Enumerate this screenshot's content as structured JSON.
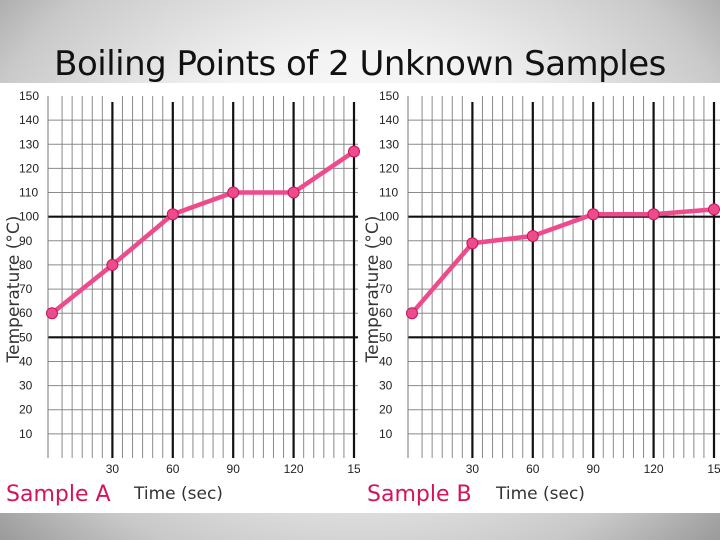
{
  "slide": {
    "title": "Boiling Points of 2 Unknown Samples"
  },
  "colors": {
    "series": "#ef4a8c",
    "major_grid": "#111111",
    "minor_grid": "#8a8a8a",
    "caption": "#d4145a"
  },
  "chart_data": [
    {
      "type": "line",
      "caption": "Sample A",
      "xlabel": "Time (sec)",
      "ylabel": "Temperature (°C)",
      "x_ticks": [
        "30",
        "60",
        "90",
        "120",
        "15"
      ],
      "y_ticks": [
        "150",
        "140",
        "130",
        "120",
        "110",
        "100",
        "90",
        "80",
        "70",
        "60",
        "50",
        "40",
        "30",
        "20",
        "10"
      ],
      "xlim": [
        0,
        150
      ],
      "ylim": [
        0,
        150
      ],
      "grid": true,
      "series": [
        {
          "x": [
            0,
            30,
            60,
            90,
            120,
            150
          ],
          "y": [
            60,
            80,
            101,
            110,
            110,
            127
          ]
        }
      ]
    },
    {
      "type": "line",
      "caption": "Sample B",
      "xlabel": "Time (sec)",
      "ylabel": "Temperature (°C)",
      "x_ticks": [
        "30",
        "60",
        "90",
        "120",
        "15"
      ],
      "y_ticks": [
        "150",
        "140",
        "130",
        "120",
        "110",
        "100",
        "90",
        "80",
        "70",
        "60",
        "50",
        "40",
        "30",
        "20",
        "10"
      ],
      "xlim": [
        0,
        150
      ],
      "ylim": [
        0,
        150
      ],
      "grid": true,
      "series": [
        {
          "x": [
            0,
            30,
            60,
            90,
            120,
            150
          ],
          "y": [
            60,
            89,
            92,
            101,
            101,
            103
          ]
        }
      ]
    }
  ]
}
